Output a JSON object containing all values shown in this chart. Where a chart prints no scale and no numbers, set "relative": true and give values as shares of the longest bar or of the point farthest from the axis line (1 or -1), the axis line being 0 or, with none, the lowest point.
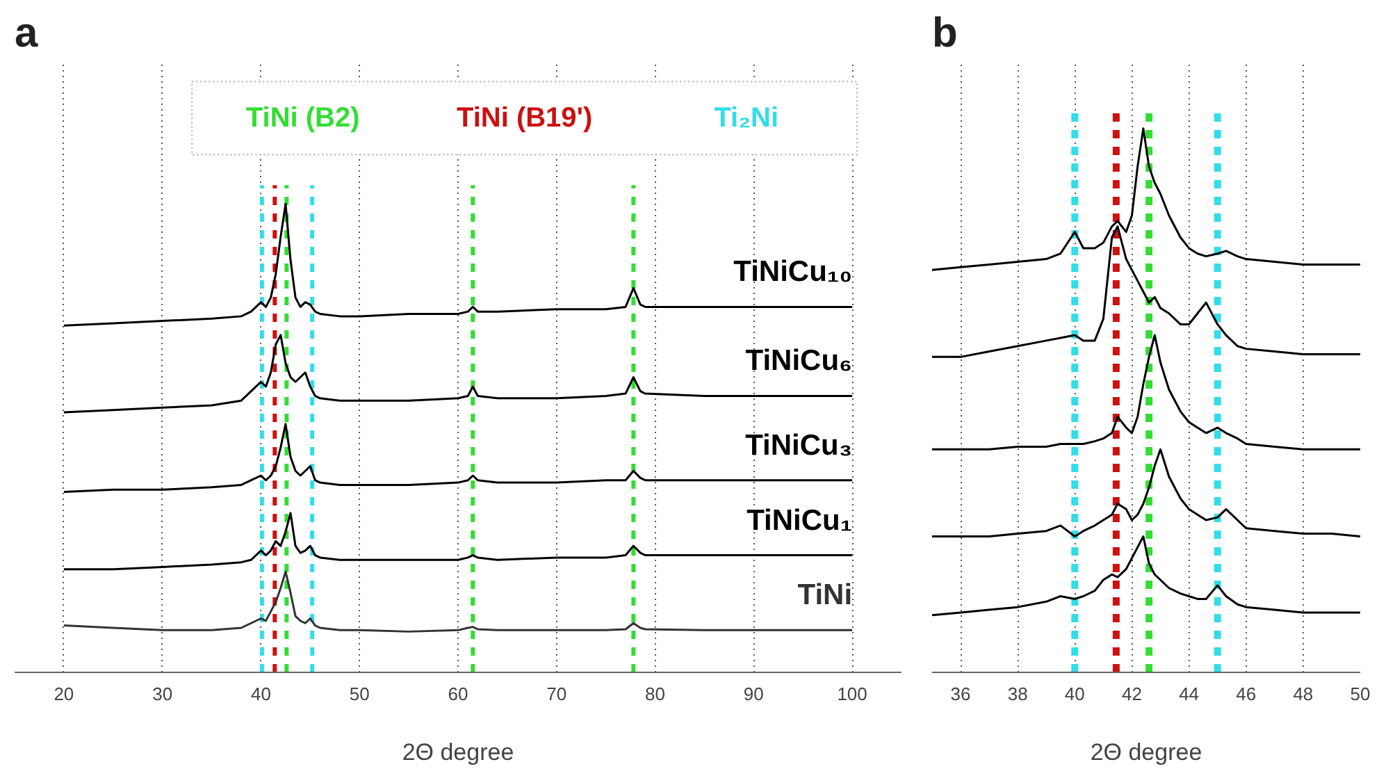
{
  "chart_data": [
    {
      "type": "line",
      "title": "a",
      "xlabel": "2Θ degree",
      "relative": true,
      "xlim": [
        15,
        105
      ],
      "xticks": [
        20,
        30,
        40,
        50,
        60,
        70,
        80,
        90,
        100
      ],
      "tick_labels": "x",
      "grid": "x",
      "legend": "top",
      "line_style": "solid",
      "marker": "none",
      "x": [
        20,
        25,
        30,
        35,
        38,
        39,
        40,
        40.5,
        41,
        41.5,
        42,
        42.5,
        43,
        43.5,
        44,
        44.5,
        45,
        45.5,
        46,
        48,
        50,
        55,
        60,
        61,
        61.5,
        62,
        64,
        70,
        75,
        77,
        77.8,
        78.5,
        79,
        85,
        90,
        95,
        100
      ],
      "series": [
        {
          "name": "TiNiCu₁₀",
          "color": "#000000",
          "values": [
            0.74,
            0.745,
            0.75,
            0.755,
            0.76,
            0.77,
            0.79,
            0.78,
            0.8,
            0.85,
            0.93,
            1.0,
            0.88,
            0.8,
            0.78,
            0.79,
            0.785,
            0.77,
            0.765,
            0.76,
            0.76,
            0.765,
            0.765,
            0.77,
            0.78,
            0.77,
            0.77,
            0.775,
            0.775,
            0.78,
            0.82,
            0.785,
            0.78,
            0.78,
            0.78,
            0.78,
            0.78
          ]
        },
        {
          "name": "TiNiCu₆",
          "color": "#000000",
          "values": [
            0.555,
            0.56,
            0.565,
            0.57,
            0.58,
            0.6,
            0.62,
            0.61,
            0.64,
            0.7,
            0.72,
            0.66,
            0.63,
            0.62,
            0.63,
            0.64,
            0.61,
            0.59,
            0.585,
            0.58,
            0.58,
            0.58,
            0.585,
            0.59,
            0.61,
            0.59,
            0.585,
            0.585,
            0.59,
            0.595,
            0.63,
            0.6,
            0.595,
            0.59,
            0.59,
            0.59,
            0.59
          ]
        },
        {
          "name": "TiNiCu₃",
          "color": "#000000",
          "values": [
            0.385,
            0.39,
            0.39,
            0.395,
            0.4,
            0.41,
            0.42,
            0.41,
            0.42,
            0.44,
            0.48,
            0.53,
            0.46,
            0.43,
            0.42,
            0.43,
            0.44,
            0.41,
            0.405,
            0.4,
            0.4,
            0.4,
            0.405,
            0.41,
            0.42,
            0.41,
            0.405,
            0.405,
            0.41,
            0.41,
            0.43,
            0.415,
            0.41,
            0.41,
            0.41,
            0.41,
            0.41
          ]
        },
        {
          "name": "TiNiCu₁",
          "color": "#000000",
          "values": [
            0.22,
            0.22,
            0.225,
            0.23,
            0.235,
            0.24,
            0.26,
            0.25,
            0.26,
            0.28,
            0.27,
            0.3,
            0.34,
            0.27,
            0.255,
            0.26,
            0.27,
            0.25,
            0.245,
            0.24,
            0.24,
            0.24,
            0.24,
            0.245,
            0.25,
            0.245,
            0.24,
            0.245,
            0.245,
            0.25,
            0.27,
            0.255,
            0.25,
            0.25,
            0.25,
            0.25,
            0.25
          ]
        },
        {
          "name": "TiNi",
          "color": "#333333",
          "values": [
            0.1,
            0.095,
            0.09,
            0.09,
            0.095,
            0.105,
            0.115,
            0.11,
            0.13,
            0.15,
            0.18,
            0.215,
            0.17,
            0.12,
            0.11,
            0.105,
            0.115,
            0.1,
            0.095,
            0.09,
            0.09,
            0.087,
            0.09,
            0.095,
            0.097,
            0.092,
            0.09,
            0.09,
            0.09,
            0.092,
            0.105,
            0.095,
            0.092,
            0.09,
            0.09,
            0.09,
            0.09
          ]
        }
      ],
      "ref_lines": [
        {
          "axis": "x",
          "value": 42.6,
          "label": "TiNi (B2)",
          "color": "#33dd33",
          "line_style": "dashed"
        },
        {
          "axis": "x",
          "value": 41.4,
          "label": "TiNi (B19')",
          "color": "#cc1111",
          "line_style": "dashed"
        },
        {
          "axis": "x",
          "value": 40.1,
          "label": "Ti₂Ni",
          "color": "#33dde8",
          "line_style": "dashed"
        },
        {
          "axis": "x",
          "value": 45.2,
          "color": "#33dde8",
          "line_style": "dashed"
        },
        {
          "axis": "x",
          "value": 61.5,
          "color": "#33dd33",
          "line_style": "dashed"
        },
        {
          "axis": "x",
          "value": 77.8,
          "color": "#33dd33",
          "line_style": "dashed"
        }
      ]
    },
    {
      "type": "line",
      "title": "b",
      "xlabel": "2Θ degree",
      "relative": true,
      "xlim": [
        35,
        50
      ],
      "xticks": [
        36,
        38,
        40,
        42,
        44,
        46,
        48,
        50
      ],
      "tick_labels": "x",
      "grid": "x",
      "line_style": "solid",
      "marker": "none",
      "x": [
        35,
        36,
        37,
        38,
        39,
        39.5,
        40,
        40.3,
        40.7,
        41,
        41.3,
        41.5,
        41.8,
        42,
        42.2,
        42.4,
        42.6,
        42.8,
        43,
        43.3,
        43.7,
        44,
        44.3,
        44.6,
        45,
        45.3,
        45.7,
        46,
        47,
        48,
        49,
        50
      ],
      "series": [
        {
          "color": "#000000",
          "values": [
            0.74,
            0.745,
            0.75,
            0.755,
            0.76,
            0.77,
            0.81,
            0.78,
            0.78,
            0.79,
            0.82,
            0.83,
            0.81,
            0.84,
            0.93,
            1.0,
            0.93,
            0.9,
            0.88,
            0.84,
            0.8,
            0.78,
            0.77,
            0.765,
            0.77,
            0.775,
            0.765,
            0.76,
            0.755,
            0.75,
            0.75,
            0.75
          ]
        },
        {
          "color": "#000000",
          "values": [
            0.58,
            0.58,
            0.59,
            0.6,
            0.61,
            0.615,
            0.62,
            0.61,
            0.61,
            0.65,
            0.8,
            0.82,
            0.76,
            0.74,
            0.72,
            0.7,
            0.68,
            0.69,
            0.67,
            0.66,
            0.64,
            0.64,
            0.66,
            0.68,
            0.64,
            0.62,
            0.6,
            0.595,
            0.59,
            0.585,
            0.585,
            0.585
          ]
        },
        {
          "color": "#000000",
          "values": [
            0.41,
            0.41,
            0.41,
            0.415,
            0.415,
            0.42,
            0.42,
            0.42,
            0.425,
            0.43,
            0.44,
            0.47,
            0.45,
            0.44,
            0.47,
            0.53,
            0.58,
            0.62,
            0.57,
            0.52,
            0.48,
            0.46,
            0.45,
            0.44,
            0.45,
            0.44,
            0.43,
            0.42,
            0.415,
            0.41,
            0.41,
            0.41
          ]
        },
        {
          "color": "#000000",
          "values": [
            0.25,
            0.25,
            0.25,
            0.255,
            0.26,
            0.27,
            0.25,
            0.26,
            0.27,
            0.28,
            0.29,
            0.31,
            0.3,
            0.28,
            0.29,
            0.31,
            0.34,
            0.38,
            0.41,
            0.36,
            0.32,
            0.3,
            0.29,
            0.28,
            0.285,
            0.3,
            0.28,
            0.265,
            0.26,
            0.255,
            0.255,
            0.25
          ]
        },
        {
          "color": "#000000",
          "values": [
            0.105,
            0.11,
            0.115,
            0.12,
            0.13,
            0.14,
            0.135,
            0.14,
            0.15,
            0.17,
            0.18,
            0.175,
            0.19,
            0.21,
            0.23,
            0.25,
            0.2,
            0.18,
            0.17,
            0.155,
            0.145,
            0.14,
            0.135,
            0.135,
            0.16,
            0.14,
            0.125,
            0.12,
            0.115,
            0.11,
            0.11,
            0.11
          ]
        }
      ],
      "ref_lines": [
        {
          "axis": "x",
          "value": 40.0,
          "color": "#33dde8",
          "line_style": "dashed"
        },
        {
          "axis": "x",
          "value": 41.45,
          "color": "#cc1111",
          "line_style": "dashed"
        },
        {
          "axis": "x",
          "value": 42.6,
          "color": "#33dd33",
          "line_style": "dashed"
        },
        {
          "axis": "x",
          "value": 45.0,
          "color": "#33dde8",
          "line_style": "dashed"
        }
      ]
    }
  ]
}
